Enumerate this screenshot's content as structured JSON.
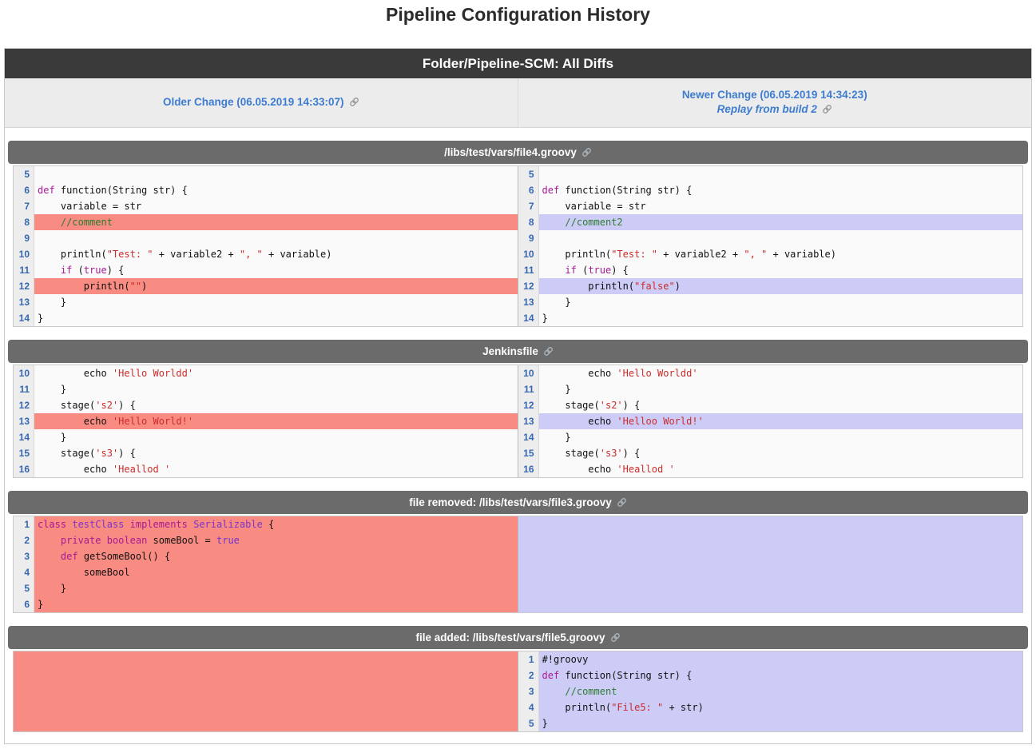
{
  "page_title": "Pipeline Configuration History",
  "banner": {
    "title": "Folder/Pipeline-SCM: All Diffs"
  },
  "change_header": {
    "older": {
      "label": "Older Change (06.05.2019 14:33:07)"
    },
    "newer": {
      "label": "Newer Change (06.05.2019 14:34:23)",
      "replay_label": "Replay from build 2"
    }
  },
  "colors": {
    "accent_blue": "#3d7cd1",
    "removed_bg": "#f88b82",
    "added_bg": "#ccccf7",
    "banner_bg": "#3a3a3a",
    "section_header_bg": "#6b6b6b",
    "line_number_blue": "#3667b0",
    "keyword": "#a81a96",
    "string": "#cc2b2b",
    "comment": "#2e7b32"
  },
  "icons": {
    "link": "link-icon"
  },
  "sections": [
    {
      "title": "/libs/test/vars/file4.groovy",
      "left": {
        "lines": [
          {
            "n": 5,
            "hl": "none",
            "seg": []
          },
          {
            "n": 6,
            "hl": "none",
            "seg": [
              [
                "kw",
                "def"
              ],
              [
                "pl",
                " function(String str) {"
              ]
            ]
          },
          {
            "n": 7,
            "hl": "none",
            "seg": [
              [
                "pl",
                "    variable = str"
              ]
            ]
          },
          {
            "n": 8,
            "hl": "del",
            "seg": [
              [
                "pl",
                "    "
              ],
              [
                "cm",
                "//comment"
              ]
            ]
          },
          {
            "n": 9,
            "hl": "none",
            "seg": []
          },
          {
            "n": 10,
            "hl": "none",
            "seg": [
              [
                "pl",
                "    println("
              ],
              [
                "st",
                "\"Test: \""
              ],
              [
                "pl",
                " + variable2 + "
              ],
              [
                "st",
                "\", \""
              ],
              [
                "pl",
                " + variable)"
              ]
            ]
          },
          {
            "n": 11,
            "hl": "none",
            "seg": [
              [
                "pl",
                "    "
              ],
              [
                "kw",
                "if"
              ],
              [
                "pl",
                " ("
              ],
              [
                "kw",
                "true"
              ],
              [
                "pl",
                ") {"
              ]
            ]
          },
          {
            "n": 12,
            "hl": "del",
            "seg": [
              [
                "pl",
                "        println("
              ],
              [
                "st",
                "\"\""
              ],
              [
                "pl",
                ")"
              ]
            ]
          },
          {
            "n": 13,
            "hl": "none",
            "seg": [
              [
                "pl",
                "    }"
              ]
            ]
          },
          {
            "n": 14,
            "hl": "none",
            "seg": [
              [
                "pl",
                "}"
              ]
            ]
          }
        ]
      },
      "right": {
        "lines": [
          {
            "n": 5,
            "hl": "none",
            "seg": []
          },
          {
            "n": 6,
            "hl": "none",
            "seg": [
              [
                "kw",
                "def"
              ],
              [
                "pl",
                " function(String str) {"
              ]
            ]
          },
          {
            "n": 7,
            "hl": "none",
            "seg": [
              [
                "pl",
                "    variable = str"
              ]
            ]
          },
          {
            "n": 8,
            "hl": "add",
            "seg": [
              [
                "pl",
                "    "
              ],
              [
                "cm",
                "//comment2"
              ]
            ]
          },
          {
            "n": 9,
            "hl": "none",
            "seg": []
          },
          {
            "n": 10,
            "hl": "none",
            "seg": [
              [
                "pl",
                "    println("
              ],
              [
                "st",
                "\"Test: \""
              ],
              [
                "pl",
                " + variable2 + "
              ],
              [
                "st",
                "\", \""
              ],
              [
                "pl",
                " + variable)"
              ]
            ]
          },
          {
            "n": 11,
            "hl": "none",
            "seg": [
              [
                "pl",
                "    "
              ],
              [
                "kw",
                "if"
              ],
              [
                "pl",
                " ("
              ],
              [
                "kw",
                "true"
              ],
              [
                "pl",
                ") {"
              ]
            ]
          },
          {
            "n": 12,
            "hl": "add",
            "seg": [
              [
                "pl",
                "        println("
              ],
              [
                "st",
                "\"false\""
              ],
              [
                "pl",
                ")"
              ]
            ]
          },
          {
            "n": 13,
            "hl": "none",
            "seg": [
              [
                "pl",
                "    }"
              ]
            ]
          },
          {
            "n": 14,
            "hl": "none",
            "seg": [
              [
                "pl",
                "}"
              ]
            ]
          }
        ]
      }
    },
    {
      "title": "Jenkinsfile",
      "left": {
        "lines": [
          {
            "n": 10,
            "hl": "none",
            "seg": [
              [
                "pl",
                "        echo "
              ],
              [
                "st",
                "'Hello Worldd'"
              ]
            ]
          },
          {
            "n": 11,
            "hl": "none",
            "seg": [
              [
                "pl",
                "    }"
              ]
            ]
          },
          {
            "n": 12,
            "hl": "none",
            "seg": [
              [
                "pl",
                "    stage("
              ],
              [
                "st",
                "'s2'"
              ],
              [
                "pl",
                ") {"
              ]
            ]
          },
          {
            "n": 13,
            "hl": "del",
            "seg": [
              [
                "pl",
                "        echo "
              ],
              [
                "st",
                "'Hello World!'"
              ]
            ]
          },
          {
            "n": 14,
            "hl": "none",
            "seg": [
              [
                "pl",
                "    }"
              ]
            ]
          },
          {
            "n": 15,
            "hl": "none",
            "seg": [
              [
                "pl",
                "    stage("
              ],
              [
                "st",
                "'s3'"
              ],
              [
                "pl",
                ") {"
              ]
            ]
          },
          {
            "n": 16,
            "hl": "none",
            "seg": [
              [
                "pl",
                "        echo "
              ],
              [
                "st",
                "'Heallod '"
              ]
            ]
          }
        ]
      },
      "right": {
        "lines": [
          {
            "n": 10,
            "hl": "none",
            "seg": [
              [
                "pl",
                "        echo "
              ],
              [
                "st",
                "'Hello Worldd'"
              ]
            ]
          },
          {
            "n": 11,
            "hl": "none",
            "seg": [
              [
                "pl",
                "    }"
              ]
            ]
          },
          {
            "n": 12,
            "hl": "none",
            "seg": [
              [
                "pl",
                "    stage("
              ],
              [
                "st",
                "'s2'"
              ],
              [
                "pl",
                ") {"
              ]
            ]
          },
          {
            "n": 13,
            "hl": "add",
            "seg": [
              [
                "pl",
                "        echo "
              ],
              [
                "st",
                "'Helloo World!'"
              ]
            ]
          },
          {
            "n": 14,
            "hl": "none",
            "seg": [
              [
                "pl",
                "    }"
              ]
            ]
          },
          {
            "n": 15,
            "hl": "none",
            "seg": [
              [
                "pl",
                "    stage("
              ],
              [
                "st",
                "'s3'"
              ],
              [
                "pl",
                ") {"
              ]
            ]
          },
          {
            "n": 16,
            "hl": "none",
            "seg": [
              [
                "pl",
                "        echo "
              ],
              [
                "st",
                "'Heallod '"
              ]
            ]
          }
        ]
      }
    },
    {
      "title": "file removed: /libs/test/vars/file3.groovy",
      "left": {
        "lines": [
          {
            "n": 1,
            "hl": "del",
            "seg": [
              [
                "kw",
                "class"
              ],
              [
                "pl",
                " "
              ],
              [
                "ty",
                "testClass"
              ],
              [
                "pl",
                " "
              ],
              [
                "kw",
                "implements"
              ],
              [
                "pl",
                " "
              ],
              [
                "ty",
                "Serializable"
              ],
              [
                "pl",
                " {"
              ]
            ]
          },
          {
            "n": 2,
            "hl": "del",
            "seg": [
              [
                "pl",
                "    "
              ],
              [
                "kw",
                "private"
              ],
              [
                "pl",
                " "
              ],
              [
                "kw",
                "boolean"
              ],
              [
                "pl",
                " someBool = "
              ],
              [
                "bo",
                "true"
              ]
            ]
          },
          {
            "n": 3,
            "hl": "del",
            "seg": [
              [
                "pl",
                "    "
              ],
              [
                "kw",
                "def"
              ],
              [
                "pl",
                " getSomeBool() {"
              ]
            ]
          },
          {
            "n": 4,
            "hl": "del",
            "seg": [
              [
                "pl",
                "        someBool"
              ]
            ]
          },
          {
            "n": 5,
            "hl": "del",
            "seg": [
              [
                "pl",
                "    }"
              ]
            ]
          },
          {
            "n": 6,
            "hl": "del",
            "seg": [
              [
                "pl",
                "}"
              ]
            ]
          }
        ]
      },
      "right": {
        "block": "add"
      }
    },
    {
      "title": "file added: /libs/test/vars/file5.groovy",
      "left": {
        "block": "del"
      },
      "right": {
        "lines": [
          {
            "n": 1,
            "hl": "add",
            "seg": [
              [
                "pl",
                "#!groovy"
              ]
            ]
          },
          {
            "n": 2,
            "hl": "add",
            "seg": [
              [
                "kw",
                "def"
              ],
              [
                "pl",
                " function(String str) {"
              ]
            ]
          },
          {
            "n": 3,
            "hl": "add",
            "seg": [
              [
                "pl",
                "    "
              ],
              [
                "cm",
                "//comment"
              ]
            ]
          },
          {
            "n": 4,
            "hl": "add",
            "seg": [
              [
                "pl",
                "    println("
              ],
              [
                "st",
                "\"File5: \""
              ],
              [
                "pl",
                " + str)"
              ]
            ]
          },
          {
            "n": 5,
            "hl": "add",
            "seg": [
              [
                "pl",
                "}"
              ]
            ]
          }
        ]
      }
    }
  ]
}
